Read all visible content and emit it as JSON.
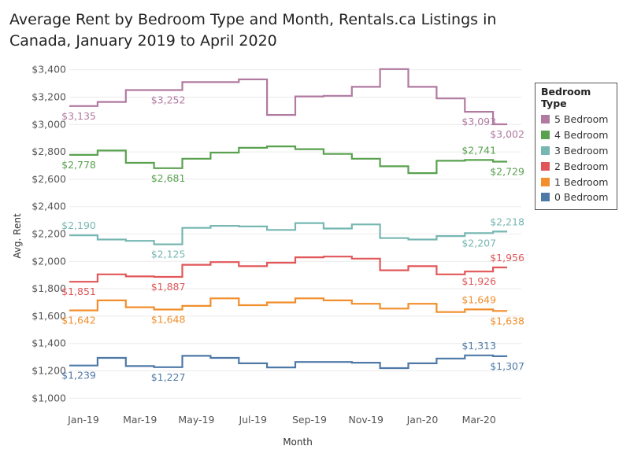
{
  "chart_data": {
    "type": "line",
    "subtype": "step",
    "title": "Average Rent by Bedroom Type and Month, Rentals.ca Listings in Canada, January 2019 to April 2020",
    "xlabel": "Month",
    "ylabel": "Avg. Rent",
    "ylim": [
      950,
      3450
    ],
    "y_ticks": [
      "$1,000",
      "$1,200",
      "$1,400",
      "$1,600",
      "$1,800",
      "$2,000",
      "$2,200",
      "$2,400",
      "$2,600",
      "$2,800",
      "$3,000",
      "$3,200",
      "$3,400"
    ],
    "y_tick_values": [
      1000,
      1200,
      1400,
      1600,
      1800,
      2000,
      2200,
      2400,
      2600,
      2800,
      3000,
      3200,
      3400
    ],
    "x": [
      "Jan-19",
      "Feb-19",
      "Mar-19",
      "Apr-19",
      "May-19",
      "Jun-19",
      "Jul-19",
      "Aug-19",
      "Sep-19",
      "Oct-19",
      "Nov-19",
      "Dec-19",
      "Jan-20",
      "Feb-20",
      "Mar-20",
      "Apr-20"
    ],
    "x_tick_labels": [
      "Jan-19",
      "Mar-19",
      "May-19",
      "Jul-19",
      "Sep-19",
      "Nov-19",
      "Jan-20",
      "Mar-20"
    ],
    "grid": true,
    "legend": {
      "title": "Bedroom Type",
      "position": "right",
      "entries": [
        "5 Bedroom",
        "4 Bedroom",
        "3 Bedroom",
        "2 Bedroom",
        "1 Bedroom",
        "0 Bedroom"
      ]
    },
    "series": [
      {
        "name": "5 Bedroom",
        "color": "#b07aa1",
        "values": [
          3135,
          3165,
          3252,
          3252,
          3310,
          3310,
          3330,
          3070,
          3205,
          3210,
          3275,
          3405,
          3275,
          3190,
          3093,
          3002
        ],
        "labels": [
          {
            "index": 0,
            "text": "$3,135",
            "pos": "below"
          },
          {
            "index": 3,
            "text": "$3,252",
            "pos": "below"
          },
          {
            "index": 14,
            "text": "$3,093",
            "pos": "below"
          },
          {
            "index": 15,
            "text": "$3,002",
            "pos": "below"
          }
        ]
      },
      {
        "name": "4 Bedroom",
        "color": "#59a14f",
        "values": [
          2778,
          2810,
          2720,
          2681,
          2750,
          2795,
          2830,
          2840,
          2820,
          2785,
          2750,
          2695,
          2645,
          2735,
          2741,
          2729
        ],
        "labels": [
          {
            "index": 0,
            "text": "$2,778",
            "pos": "below"
          },
          {
            "index": 3,
            "text": "$2,681",
            "pos": "below"
          },
          {
            "index": 14,
            "text": "$2,741",
            "pos": "above"
          },
          {
            "index": 15,
            "text": "$2,729",
            "pos": "below"
          }
        ]
      },
      {
        "name": "3 Bedroom",
        "color": "#76b7b2",
        "values": [
          2190,
          2160,
          2150,
          2125,
          2245,
          2260,
          2255,
          2230,
          2280,
          2240,
          2270,
          2170,
          2160,
          2185,
          2207,
          2218
        ],
        "labels": [
          {
            "index": 0,
            "text": "$2,190",
            "pos": "above"
          },
          {
            "index": 3,
            "text": "$2,125",
            "pos": "below"
          },
          {
            "index": 14,
            "text": "$2,207",
            "pos": "below"
          },
          {
            "index": 15,
            "text": "$2,218",
            "pos": "above"
          }
        ]
      },
      {
        "name": "2 Bedroom",
        "color": "#e15759",
        "values": [
          1851,
          1905,
          1890,
          1887,
          1975,
          1995,
          1965,
          1990,
          2030,
          2035,
          2020,
          1935,
          1965,
          1905,
          1926,
          1956
        ],
        "labels": [
          {
            "index": 0,
            "text": "$1,851",
            "pos": "below"
          },
          {
            "index": 3,
            "text": "$1,887",
            "pos": "below"
          },
          {
            "index": 14,
            "text": "$1,926",
            "pos": "below"
          },
          {
            "index": 15,
            "text": "$1,956",
            "pos": "above"
          }
        ]
      },
      {
        "name": "1 Bedroom",
        "color": "#f28e2b",
        "values": [
          1642,
          1715,
          1665,
          1648,
          1675,
          1730,
          1680,
          1700,
          1730,
          1715,
          1690,
          1655,
          1690,
          1630,
          1649,
          1638
        ],
        "labels": [
          {
            "index": 0,
            "text": "$1,642",
            "pos": "below"
          },
          {
            "index": 3,
            "text": "$1,648",
            "pos": "below"
          },
          {
            "index": 14,
            "text": "$1,649",
            "pos": "above"
          },
          {
            "index": 15,
            "text": "$1,638",
            "pos": "below"
          }
        ]
      },
      {
        "name": "0 Bedroom",
        "color": "#4e79a7",
        "values": [
          1239,
          1295,
          1235,
          1227,
          1310,
          1295,
          1255,
          1225,
          1265,
          1265,
          1260,
          1220,
          1255,
          1290,
          1313,
          1307
        ],
        "labels": [
          {
            "index": 0,
            "text": "$1,239",
            "pos": "below"
          },
          {
            "index": 3,
            "text": "$1,227",
            "pos": "below"
          },
          {
            "index": 14,
            "text": "$1,313",
            "pos": "above"
          },
          {
            "index": 15,
            "text": "$1,307",
            "pos": "below"
          }
        ]
      }
    ]
  }
}
